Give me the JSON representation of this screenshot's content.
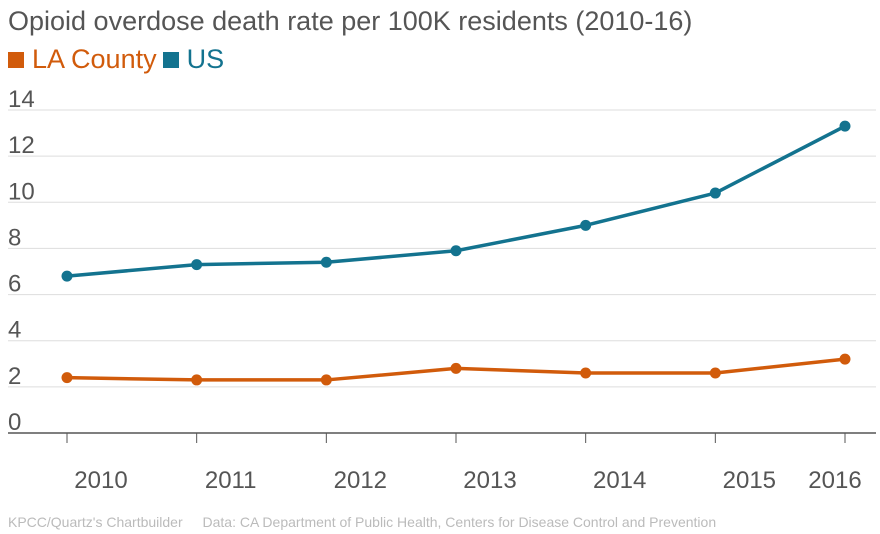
{
  "colors": {
    "la": "#d15b0b",
    "us": "#13738f",
    "grid": "#dddddd",
    "axis": "#555555",
    "text": "#555555",
    "footer": "#bbbbbb"
  },
  "footer": {
    "credit": "KPCC/Quartz's Chartbuilder",
    "source": "Data: CA Department of Public Health, Centers for Disease Control and Prevention"
  },
  "chart_data": {
    "type": "line",
    "title": "Opioid overdose death rate per 100K residents (2010-16)",
    "xlabel": "",
    "ylabel": "",
    "categories": [
      "2010",
      "2011",
      "2012",
      "2013",
      "2014",
      "2015",
      "2016"
    ],
    "yticks": [
      "0",
      "2",
      "4",
      "6",
      "8",
      "10",
      "12",
      "14"
    ],
    "ylim": [
      0,
      14
    ],
    "grid": true,
    "legend_position": "top-left",
    "series": [
      {
        "name": "LA County",
        "values": [
          2.4,
          2.3,
          2.3,
          2.8,
          2.6,
          2.6,
          3.2
        ]
      },
      {
        "name": "US",
        "values": [
          6.8,
          7.3,
          7.4,
          7.9,
          9.0,
          10.4,
          13.3
        ]
      }
    ]
  }
}
